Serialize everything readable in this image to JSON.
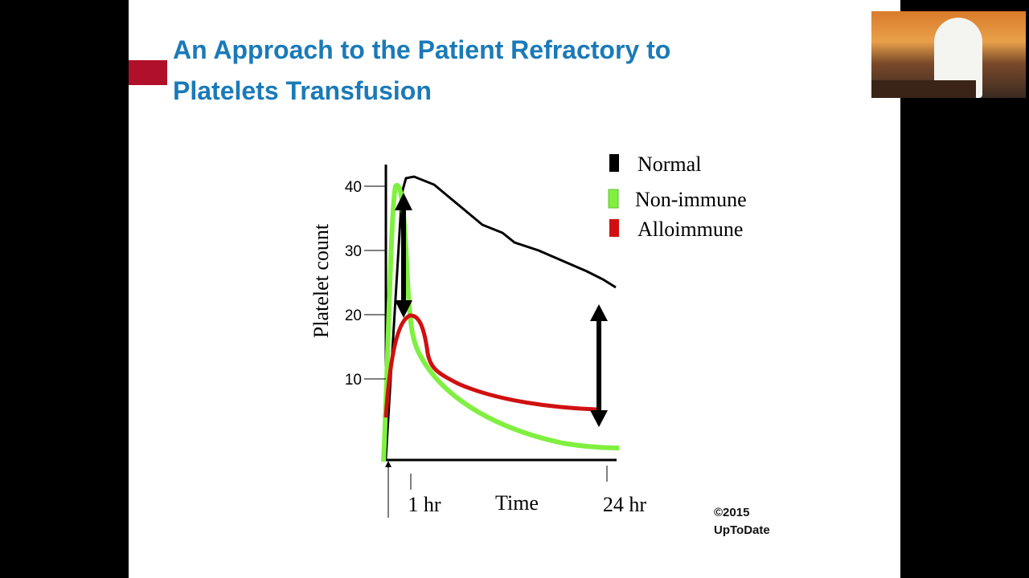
{
  "slide": {
    "title": [
      "An Approach to the Patient Refractory to",
      "Platelets Transfusion"
    ],
    "figure": {
      "y_label": "Platelet count",
      "y_ticks": [
        10,
        20,
        30,
        40
      ],
      "x_labels": [
        "1 hr",
        "Time",
        "24 hr"
      ],
      "legend": [
        "Normal",
        "Non-immune",
        "Alloimmune"
      ]
    },
    "credit": [
      "©2015",
      "UpToDate"
    ]
  }
}
